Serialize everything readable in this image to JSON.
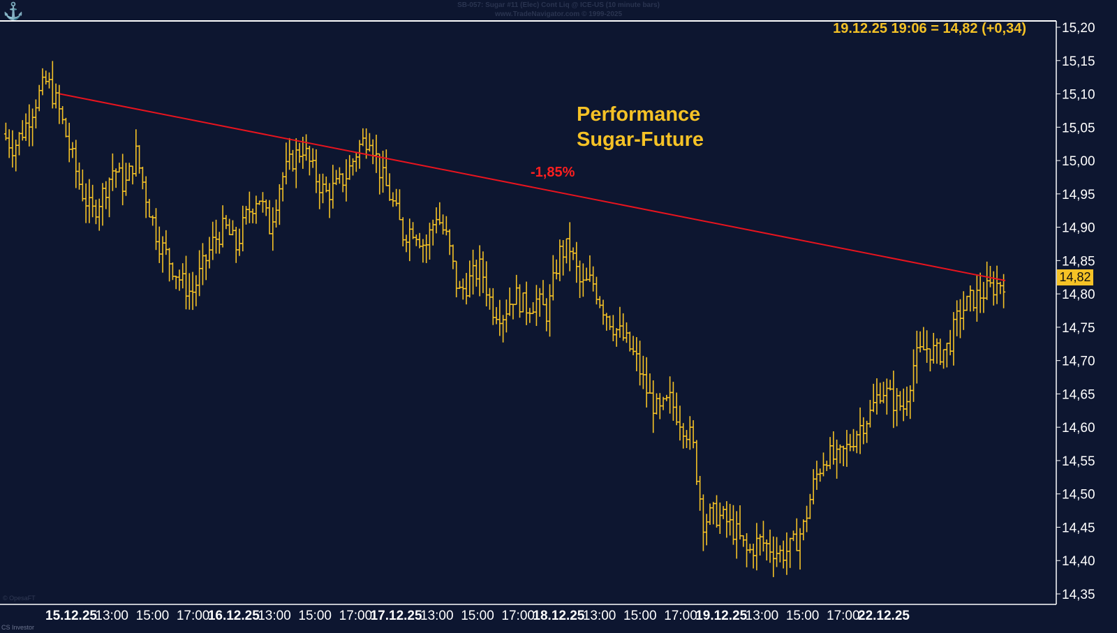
{
  "header": {
    "line1": "SB-057: Sugar #11 (Elec) Cont Liq @ ICE-US (10 minute bars)",
    "line2": "www.TradeNavigator.com © 1999-2025"
  },
  "quote_label": "19.12.25 19:06 = 14,82 (+0,34)",
  "annotation": {
    "title_line1": "Performance",
    "title_line2": "Sugar-Future",
    "change_label": "-1,85%"
  },
  "last_price_badge": "14,82",
  "watermark": "© OpesaFT",
  "footer_left": "CS Investor",
  "colors": {
    "background": "#0d1630",
    "bars": "#f5c226",
    "trendline": "#e8141e",
    "axis_text": "#ffffff"
  },
  "chart_data": {
    "type": "bar",
    "style": "ohlc",
    "ylim": [
      14.35,
      15.2
    ],
    "y_ticks": [
      "15,20",
      "15,15",
      "15,10",
      "15,05",
      "15,00",
      "14,95",
      "14,90",
      "14,85",
      "14,80",
      "14,75",
      "14,70",
      "14,65",
      "14,60",
      "14,55",
      "14,50",
      "14,45",
      "14,40",
      "14,35"
    ],
    "x_ticks": [
      {
        "label": "15.12.25",
        "bold": true
      },
      {
        "label": "13:00",
        "bold": false
      },
      {
        "label": "15:00",
        "bold": false
      },
      {
        "label": "17:00",
        "bold": false
      },
      {
        "label": "16.12.25",
        "bold": true
      },
      {
        "label": "13:00",
        "bold": false
      },
      {
        "label": "15:00",
        "bold": false
      },
      {
        "label": "17:00",
        "bold": false
      },
      {
        "label": "17.12.25",
        "bold": true
      },
      {
        "label": "13:00",
        "bold": false
      },
      {
        "label": "15:00",
        "bold": false
      },
      {
        "label": "17:00",
        "bold": false
      },
      {
        "label": "18.12.25",
        "bold": true
      },
      {
        "label": "13:00",
        "bold": false
      },
      {
        "label": "15:00",
        "bold": false
      },
      {
        "label": "17:00",
        "bold": false
      },
      {
        "label": "19.12.25",
        "bold": true
      },
      {
        "label": "13:00",
        "bold": false
      },
      {
        "label": "15:00",
        "bold": false
      },
      {
        "label": "17:00",
        "bold": false
      },
      {
        "label": "22.12.25",
        "bold": true
      }
    ],
    "price_path": [
      15.04,
      15.02,
      15.05,
      15.09,
      15.12,
      15.08,
      15.02,
      14.96,
      14.92,
      14.95,
      14.99,
      14.96,
      15.01,
      14.94,
      14.88,
      14.85,
      14.82,
      14.8,
      14.84,
      14.88,
      14.9,
      14.87,
      14.92,
      14.95,
      14.9,
      14.97,
      15.0,
      15.02,
      14.98,
      14.95,
      14.96,
      14.98,
      15.02,
      15.04,
      14.98,
      14.94,
      14.89,
      14.9,
      14.87,
      14.92,
      14.88,
      14.8,
      14.82,
      14.84,
      14.78,
      14.77,
      14.8,
      14.78,
      14.79,
      14.77,
      14.86,
      14.87,
      14.81,
      14.82,
      14.78,
      14.75,
      14.73,
      14.7,
      14.65,
      14.62,
      14.64,
      14.61,
      14.58,
      14.46,
      14.47,
      14.46,
      14.44,
      14.41,
      14.43,
      14.42,
      14.41,
      14.42,
      14.45,
      14.52,
      14.56,
      14.55,
      14.57,
      14.6,
      14.62,
      14.66,
      14.64,
      14.63,
      14.7,
      14.72,
      14.71,
      14.72,
      14.77,
      14.79,
      14.8,
      14.81,
      14.82
    ],
    "trendline": {
      "start": {
        "x_index": 5,
        "value": 15.1
      },
      "end": {
        "x_index": 90,
        "value": 14.82
      },
      "label": "-1,85%"
    }
  }
}
